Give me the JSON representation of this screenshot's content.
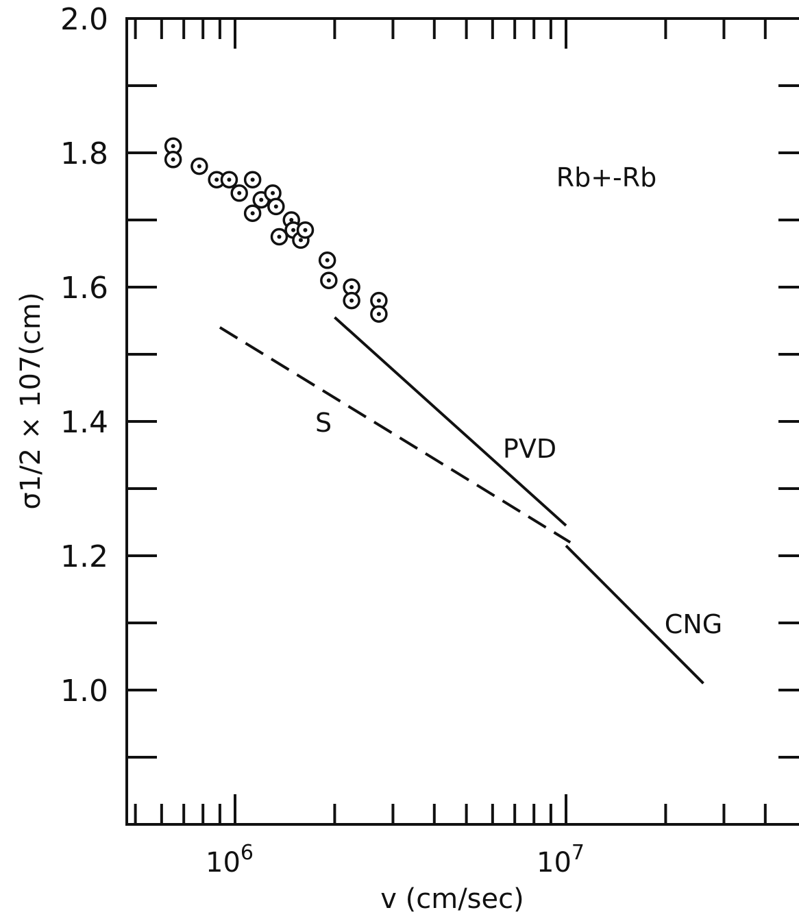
{
  "chart_data": {
    "type": "scatter",
    "title": "",
    "annotation": "Rb+-Rb",
    "xlabel": "v (cm/sec)",
    "ylabel": "σ1/2 × 107(cm)",
    "xscale": "log",
    "xlim": [
      500000,
      40000000
    ],
    "ylim": [
      0.8,
      2.0
    ],
    "x_tick_labels": [
      {
        "value": 1000000,
        "base": "10",
        "exp": "6"
      },
      {
        "value": 10000000,
        "base": "10",
        "exp": "7"
      }
    ],
    "y_tick_labels": [
      "1.0",
      "1.2",
      "1.4",
      "1.6",
      "1.8",
      "2.0"
    ],
    "y_tick_values": [
      1.0,
      1.2,
      1.4,
      1.6,
      1.8,
      2.0
    ],
    "grid": false,
    "series": [
      {
        "kind": "points",
        "marker": "circle-dot",
        "points": [
          [
            650000,
            1.81
          ],
          [
            650000,
            1.79
          ],
          [
            780000,
            1.78
          ],
          [
            880000,
            1.76
          ],
          [
            960000,
            1.76
          ],
          [
            1030000,
            1.74
          ],
          [
            1130000,
            1.76
          ],
          [
            1130000,
            1.71
          ],
          [
            1200000,
            1.73
          ],
          [
            1300000,
            1.74
          ],
          [
            1330000,
            1.72
          ],
          [
            1360000,
            1.675
          ],
          [
            1480000,
            1.7
          ],
          [
            1500000,
            1.685
          ],
          [
            1580000,
            1.67
          ],
          [
            1630000,
            1.685
          ],
          [
            1900000,
            1.64
          ],
          [
            1920000,
            1.61
          ],
          [
            2250000,
            1.6
          ],
          [
            2250000,
            1.58
          ],
          [
            2720000,
            1.58
          ],
          [
            2720000,
            1.56
          ]
        ]
      },
      {
        "name": "S",
        "kind": "line",
        "style": "dashed",
        "points": [
          [
            900000,
            1.54
          ],
          [
            10300000,
            1.22
          ]
        ]
      },
      {
        "name": "PVD",
        "kind": "line",
        "style": "solid",
        "points": [
          [
            2000000,
            1.555
          ],
          [
            10000000,
            1.245
          ]
        ]
      },
      {
        "name": "CNG",
        "kind": "line",
        "style": "solid",
        "points": [
          [
            10000000,
            1.215
          ],
          [
            26000000,
            1.01
          ]
        ]
      }
    ]
  }
}
